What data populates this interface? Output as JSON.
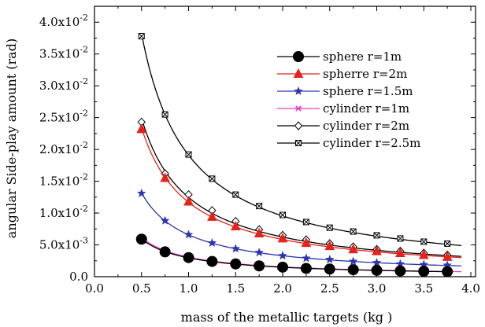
{
  "chart_data": {
    "type": "line",
    "title": "",
    "xlabel": "mass of the metallic targets (kg )",
    "ylabel": "angular Side-play amount (rad)",
    "xlim": [
      0,
      4.05
    ],
    "ylim": [
      0,
      0.0425
    ],
    "x_ticks": [
      "0.0",
      "0.5",
      "1.0",
      "1.5",
      "2.0",
      "2.5",
      "3.0",
      "3.5",
      "4.0"
    ],
    "y_ticks": [
      {
        "mantissa": "0.0",
        "exp": ""
      },
      {
        "mantissa": "5.0x10",
        "exp": "-3"
      },
      {
        "mantissa": "1.0x10",
        "exp": "-2"
      },
      {
        "mantissa": "1.5x10",
        "exp": "-2"
      },
      {
        "mantissa": "2.0x10",
        "exp": "-2"
      },
      {
        "mantissa": "2.5x10",
        "exp": "-2"
      },
      {
        "mantissa": "3.0x10",
        "exp": "-2"
      },
      {
        "mantissa": "3.5x10",
        "exp": "-2"
      },
      {
        "mantissa": "4.0x10",
        "exp": "-2"
      }
    ],
    "x": [
      0.5,
      0.75,
      1.0,
      1.25,
      1.5,
      1.75,
      2.0,
      2.25,
      2.5,
      2.75,
      3.0,
      3.25,
      3.5,
      3.75
    ],
    "legend_position": "top-right",
    "series": [
      {
        "name": "sphere r=1m",
        "color": "#000000",
        "marker": "filled-circle",
        "x_end": 3.75,
        "values": [
          0.0059,
          0.0039,
          0.003,
          0.0024,
          0.002,
          0.0017,
          0.0015,
          0.0013,
          0.0012,
          0.0011,
          0.001,
          0.0009,
          0.00085,
          0.0008
        ]
      },
      {
        "name": "spherre r=2m",
        "color": "#e8221b",
        "marker": "filled-triangle",
        "x_end": 3.9,
        "values": [
          0.0232,
          0.0155,
          0.0118,
          0.0094,
          0.0079,
          0.0068,
          0.006,
          0.0053,
          0.0048,
          0.0043,
          0.004,
          0.0037,
          0.0034,
          0.0031
        ]
      },
      {
        "name": "sphere r=1.5m",
        "color": "#2c35b0",
        "marker": "filled-star",
        "x_end": 3.9,
        "values": [
          0.0131,
          0.0088,
          0.0066,
          0.0053,
          0.0044,
          0.0038,
          0.0033,
          0.0029,
          0.0027,
          0.0024,
          0.0022,
          0.002,
          0.0019,
          0.0018
        ]
      },
      {
        "name": "cylinder r=1m",
        "color": "#e83fbf",
        "marker": "asterisk",
        "x_end": 3.9,
        "values": [
          0.0061,
          0.0041,
          0.0031,
          0.0025,
          0.0021,
          0.0018,
          0.0016,
          0.0014,
          0.0012,
          0.0011,
          0.001,
          0.0009,
          0.00085,
          0.0008
        ]
      },
      {
        "name": "cylinder r=2m",
        "color": "#000000",
        "marker": "open-diamond",
        "x_end": 3.9,
        "values": [
          0.0243,
          0.0162,
          0.0129,
          0.0104,
          0.0087,
          0.0074,
          0.0065,
          0.0058,
          0.0052,
          0.0047,
          0.0043,
          0.004,
          0.0037,
          0.0034
        ]
      },
      {
        "name": "cylinder r=2.5m",
        "color": "#000000",
        "marker": "boxed-x",
        "x_end": 3.9,
        "values": [
          0.0378,
          0.0255,
          0.0192,
          0.0154,
          0.0129,
          0.0111,
          0.0097,
          0.0086,
          0.0077,
          0.0071,
          0.0065,
          0.006,
          0.0055,
          0.0052
        ]
      }
    ]
  }
}
